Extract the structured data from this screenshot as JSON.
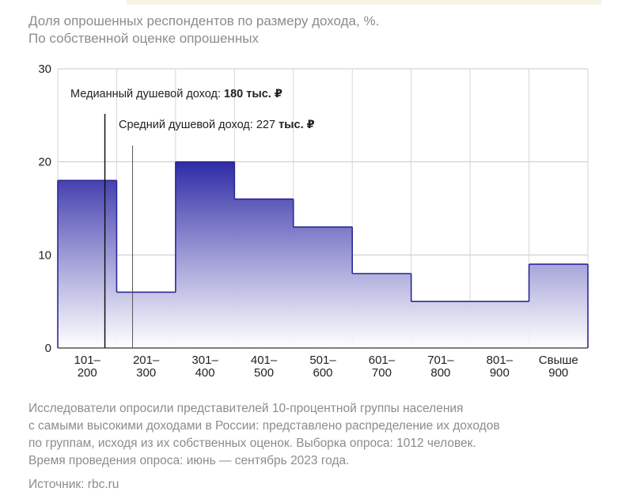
{
  "title": "Доля опрошенных респондентов по размеру дохода, %.",
  "subtitle": "По собственной оценке опрошенных",
  "chart_data": {
    "type": "bar",
    "title": "Доля опрошенных респондентов по размеру дохода, %.",
    "subtitle": "По собственной оценке опрошенных",
    "categories": [
      [
        "101–",
        "200"
      ],
      [
        "201–",
        "300"
      ],
      [
        "301–",
        "400"
      ],
      [
        "401–",
        "500"
      ],
      [
        "501–",
        "600"
      ],
      [
        "601–",
        "700"
      ],
      [
        "701–",
        "800"
      ],
      [
        "801–",
        "900"
      ],
      [
        "Свыше",
        "900"
      ]
    ],
    "values": [
      18,
      6,
      20,
      16,
      13,
      8,
      5,
      5,
      9
    ],
    "ylim": [
      0,
      30
    ],
    "yticks": [
      0,
      10,
      20,
      30
    ],
    "grid": true,
    "colors": {
      "fill_top": "#2e2aa6",
      "fill_bottom": "#ffffff",
      "outline": "#2b2899"
    },
    "annotations": [
      {
        "label": "Медианный душевой доход: ",
        "bold": "180 тыс. ₽",
        "x_value": 180,
        "style": "solid"
      },
      {
        "label": "Средний душевой доход: 227 ",
        "bold": "тыс. ₽",
        "x_value": 227,
        "style": "thin"
      }
    ]
  },
  "note": [
    "Исследователи опросили представителей 10-процентной группы населения",
    "с самыми высокими доходами в России: представлено распределение их доходов",
    "по группам, исходя из их собственных оценок. Выборка опроса: 1012 человек.",
    "Время проведения опроса: июнь — сентябрь 2023 года."
  ],
  "source": "Источник: rbc.ru"
}
